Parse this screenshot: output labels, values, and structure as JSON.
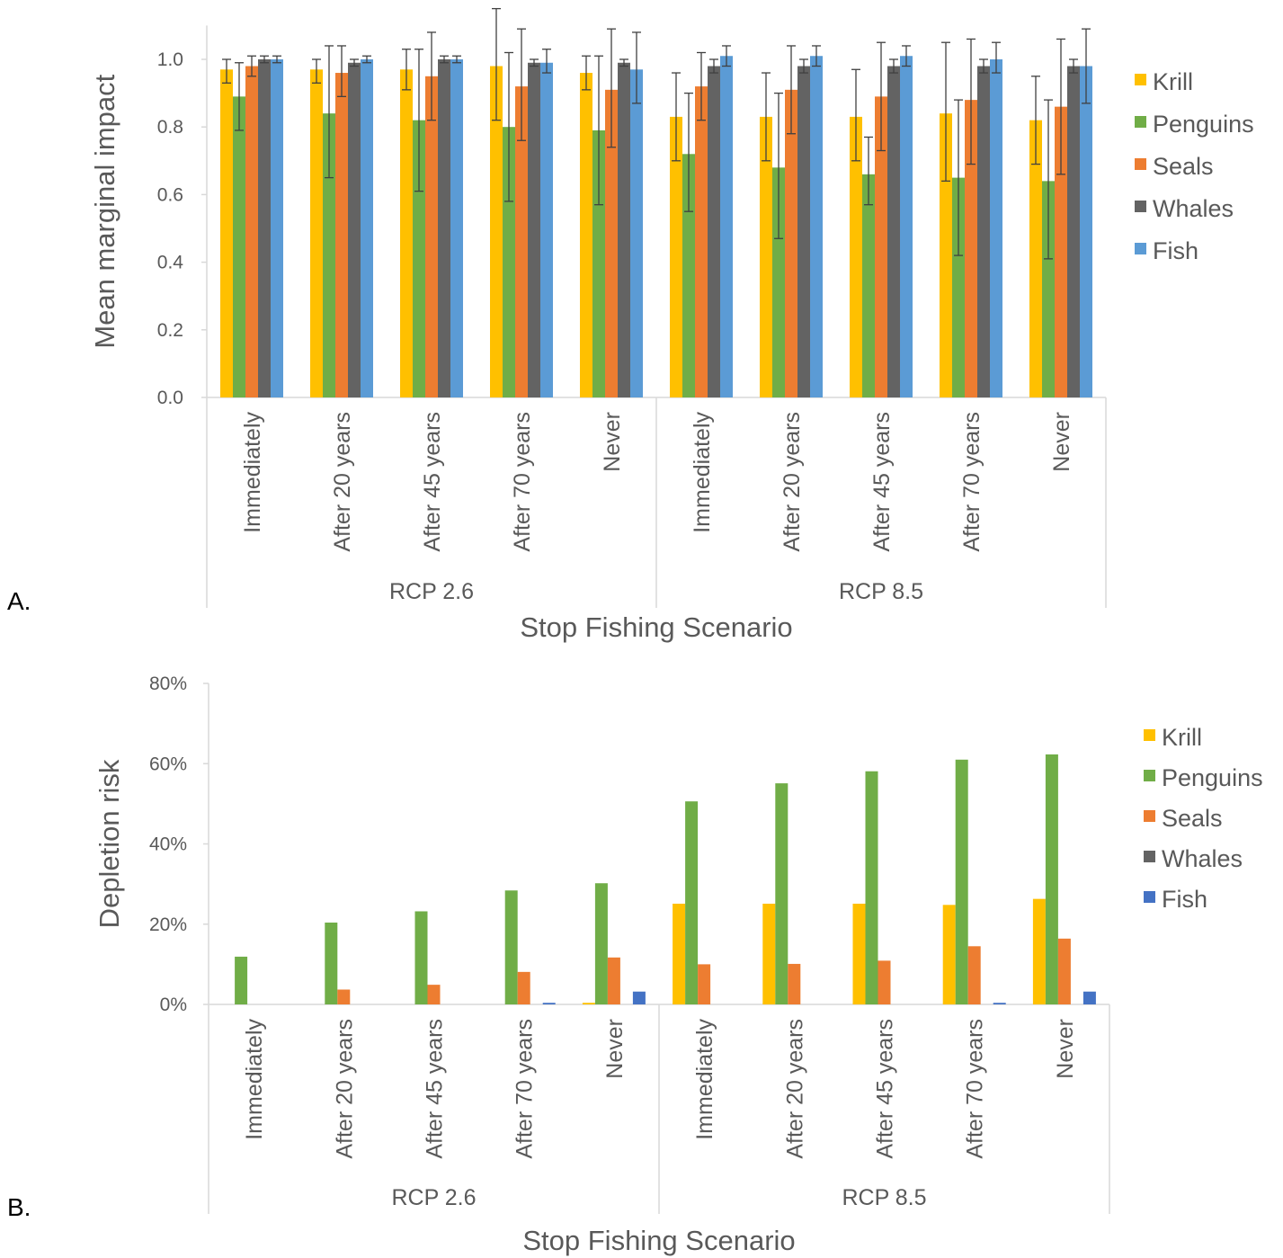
{
  "colors": {
    "Krill": "#FFC000",
    "Penguins": "#70AD47",
    "Seals": "#ED7D31",
    "Whales": "#636363",
    "Fish_A": "#5B9BD5",
    "Fish_B": "#4472C4",
    "axis": "#D9D9D9",
    "text": "#595959",
    "error_bar": "#404040"
  },
  "chart_data": [
    {
      "panel_label": "A.",
      "type": "bar",
      "ylabel": "Mean marginal impact",
      "xlabel": "Stop Fishing Scenario",
      "ylim": [
        0,
        1.1
      ],
      "yticks": [
        "0.0",
        "0.2",
        "0.4",
        "0.6",
        "0.8",
        "1.0"
      ],
      "ytick_values": [
        0,
        0.2,
        0.4,
        0.6,
        0.8,
        1.0
      ],
      "groups": [
        "RCP 2.6",
        "RCP 8.5"
      ],
      "categories": [
        "Immediately",
        "After 20 years",
        "After 45 years",
        "After 70 years",
        "Never",
        "Immediately",
        "After 20 years",
        "After 45 years",
        "After 70 years",
        "Never"
      ],
      "legend": "right",
      "grid": false,
      "series": [
        {
          "name": "Krill",
          "values": [
            0.97,
            0.97,
            0.97,
            0.98,
            0.96,
            0.83,
            0.83,
            0.83,
            0.84,
            0.82
          ],
          "err_low": [
            0.93,
            0.93,
            0.91,
            0.82,
            0.91,
            0.7,
            0.7,
            0.7,
            0.64,
            0.69
          ],
          "err_high": [
            1.0,
            1.0,
            1.03,
            1.15,
            1.01,
            0.96,
            0.96,
            0.97,
            1.05,
            0.95
          ]
        },
        {
          "name": "Penguins",
          "values": [
            0.89,
            0.84,
            0.82,
            0.8,
            0.79,
            0.72,
            0.68,
            0.66,
            0.65,
            0.64
          ],
          "err_low": [
            0.79,
            0.65,
            0.61,
            0.58,
            0.57,
            0.55,
            0.47,
            0.57,
            0.42,
            0.41
          ],
          "err_high": [
            0.99,
            1.04,
            1.03,
            1.02,
            1.01,
            0.9,
            0.9,
            0.77,
            0.88,
            0.88
          ]
        },
        {
          "name": "Seals",
          "values": [
            0.98,
            0.96,
            0.95,
            0.92,
            0.91,
            0.92,
            0.91,
            0.89,
            0.88,
            0.86
          ],
          "err_low": [
            0.95,
            0.89,
            0.82,
            0.76,
            0.74,
            0.82,
            0.78,
            0.73,
            0.69,
            0.66
          ],
          "err_high": [
            1.01,
            1.04,
            1.08,
            1.09,
            1.09,
            1.02,
            1.04,
            1.05,
            1.06,
            1.06
          ]
        },
        {
          "name": "Whales",
          "values": [
            1.0,
            0.99,
            1.0,
            0.99,
            0.99,
            0.98,
            0.98,
            0.98,
            0.98,
            0.98
          ],
          "err_low": [
            0.99,
            0.98,
            0.99,
            0.98,
            0.98,
            0.96,
            0.96,
            0.96,
            0.96,
            0.96
          ],
          "err_high": [
            1.01,
            1.0,
            1.01,
            1.0,
            1.0,
            1.0,
            1.0,
            1.0,
            1.0,
            1.0
          ]
        },
        {
          "name": "Fish",
          "values": [
            1.0,
            1.0,
            1.0,
            0.99,
            0.97,
            1.01,
            1.01,
            1.01,
            1.0,
            0.98
          ],
          "err_low": [
            0.99,
            0.99,
            0.99,
            0.96,
            0.87,
            0.98,
            0.98,
            0.98,
            0.96,
            0.87
          ],
          "err_high": [
            1.01,
            1.01,
            1.01,
            1.03,
            1.08,
            1.04,
            1.04,
            1.04,
            1.05,
            1.09
          ]
        }
      ]
    },
    {
      "panel_label": "B.",
      "type": "bar",
      "ylabel": "Depletion risk",
      "xlabel": "Stop Fishing Scenario",
      "ylim": [
        0,
        80
      ],
      "yticks": [
        "0%",
        "20%",
        "40%",
        "60%",
        "80%"
      ],
      "ytick_values": [
        0,
        20,
        40,
        60,
        80
      ],
      "groups": [
        "RCP 2.6",
        "RCP 8.5"
      ],
      "categories": [
        "Immediately",
        "After 20 years",
        "After 45 years",
        "After 70 years",
        "Never",
        "Immediately",
        "After 20 years",
        "After 45 years",
        "After 70 years",
        "Never"
      ],
      "legend": "right",
      "grid": false,
      "series": [
        {
          "name": "Krill",
          "values": [
            0,
            0,
            0,
            0,
            0.4,
            25.1,
            25.1,
            25.1,
            24.8,
            26.3
          ]
        },
        {
          "name": "Penguins",
          "values": [
            11.9,
            20.4,
            23.2,
            28.4,
            30.2,
            50.6,
            55.1,
            58.1,
            61.0,
            62.3
          ]
        },
        {
          "name": "Seals",
          "values": [
            0,
            3.7,
            4.9,
            8.1,
            11.7,
            10.0,
            10.1,
            10.9,
            14.5,
            16.4
          ]
        },
        {
          "name": "Whales",
          "values": [
            0,
            0,
            0,
            0,
            0,
            0,
            0,
            0,
            0,
            0
          ]
        },
        {
          "name": "Fish",
          "values": [
            0,
            0,
            0,
            0.4,
            3.2,
            0,
            0,
            0,
            0.4,
            3.2
          ]
        }
      ]
    }
  ]
}
